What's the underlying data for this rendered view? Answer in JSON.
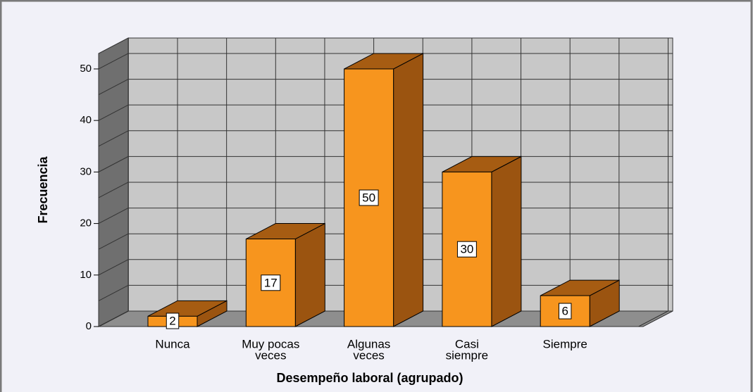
{
  "chart_data": {
    "type": "bar3d",
    "y_label": "Frecuencia",
    "x_label": "Desempeño laboral (agrupado)",
    "categories": [
      [
        "Nunca"
      ],
      [
        "Muy pocas",
        "veces"
      ],
      [
        "Algunas",
        "veces"
      ],
      [
        "Casi",
        "siempre"
      ],
      [
        "Siempre"
      ]
    ],
    "values": [
      2,
      17,
      50,
      30,
      6
    ],
    "color": "#f7951e",
    "ylim": [
      0,
      53
    ],
    "yticks": [
      0,
      10,
      20,
      30,
      40,
      50
    ],
    "minor_yticks": [
      5,
      15,
      25,
      35,
      45
    ],
    "grid": true
  }
}
